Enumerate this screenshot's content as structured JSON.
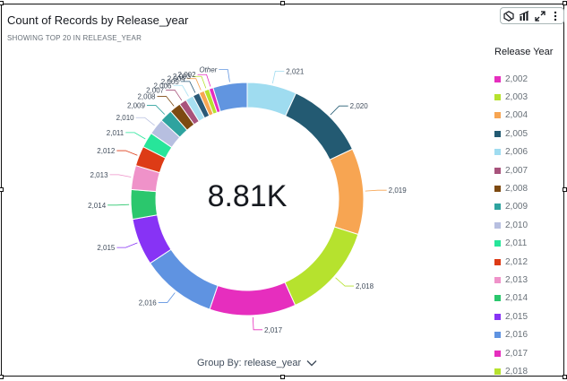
{
  "header": {
    "title": "Count of Records by Release_year",
    "subtitle": "SHOWING TOP 20 IN RELEASE_YEAR"
  },
  "toolbar": {
    "icons": [
      "filter-icon",
      "visual-type-icon",
      "expand-icon",
      "more-options-icon"
    ]
  },
  "center_value": "8.81K",
  "legend_title": "Release Year",
  "group_by": "Group By: release_year",
  "chart_data": {
    "type": "pie",
    "style": "donut",
    "title": "Count of Records by Release_year",
    "center_total": "8.81K",
    "legend_title": "Release Year",
    "legend_placement": "right",
    "start": "top, clockwise",
    "slices": [
      {
        "label": "2,021",
        "value": 592,
        "color": "#9fdcf0"
      },
      {
        "label": "2,020",
        "value": 953,
        "color": "#235a72"
      },
      {
        "label": "2,019",
        "value": 1030,
        "color": "#f7a552"
      },
      {
        "label": "2,018",
        "value": 1147,
        "color": "#b6e22e"
      },
      {
        "label": "2,017",
        "value": 1032,
        "color": "#e62ebe"
      },
      {
        "label": "2,016",
        "value": 902,
        "color": "#5f93e1"
      },
      {
        "label": "2,015",
        "value": 560,
        "color": "#8733f5"
      },
      {
        "label": "2,014",
        "value": 352,
        "color": "#2bc76d"
      },
      {
        "label": "2,013",
        "value": 288,
        "color": "#ef92c9"
      },
      {
        "label": "2,012",
        "value": 237,
        "color": "#dd3b16"
      },
      {
        "label": "2,011",
        "value": 185,
        "color": "#27e59a"
      },
      {
        "label": "2,010",
        "value": 194,
        "color": "#b7bfe0"
      },
      {
        "label": "2,009",
        "value": 152,
        "color": "#2ea39f"
      },
      {
        "label": "2,008",
        "value": 136,
        "color": "#7d4a11"
      },
      {
        "label": "2,007",
        "value": 88,
        "color": "#a8537c"
      },
      {
        "label": "2,006",
        "value": 96,
        "color": "#a8e0f2"
      },
      {
        "label": "2,005",
        "value": 80,
        "color": "#2a5a78"
      },
      {
        "label": "2,004",
        "value": 64,
        "color": "#f7a552"
      },
      {
        "label": "2,003",
        "value": 61,
        "color": "#b6e22e"
      },
      {
        "label": "2,002",
        "value": 51,
        "color": "#e62ebe"
      },
      {
        "label": "Other",
        "value": 408,
        "color": "#6195e0"
      }
    ],
    "legend": [
      {
        "label": "2,002",
        "color": "#e62ebe"
      },
      {
        "label": "2,003",
        "color": "#b6e22e"
      },
      {
        "label": "2,004",
        "color": "#f7a552"
      },
      {
        "label": "2,005",
        "color": "#235a72"
      },
      {
        "label": "2,006",
        "color": "#9fdcf0"
      },
      {
        "label": "2,007",
        "color": "#a8537c"
      },
      {
        "label": "2,008",
        "color": "#7d4a11"
      },
      {
        "label": "2,009",
        "color": "#2ea39f"
      },
      {
        "label": "2,010",
        "color": "#b7bfe0"
      },
      {
        "label": "2,011",
        "color": "#27e59a"
      },
      {
        "label": "2,012",
        "color": "#dd3b16"
      },
      {
        "label": "2,013",
        "color": "#ef92c9"
      },
      {
        "label": "2,014",
        "color": "#2bc76d"
      },
      {
        "label": "2,015",
        "color": "#8733f5"
      },
      {
        "label": "2,016",
        "color": "#5f93e1"
      },
      {
        "label": "2,017",
        "color": "#e62ebe"
      },
      {
        "label": "2,018",
        "color": "#b6e22e"
      }
    ]
  }
}
